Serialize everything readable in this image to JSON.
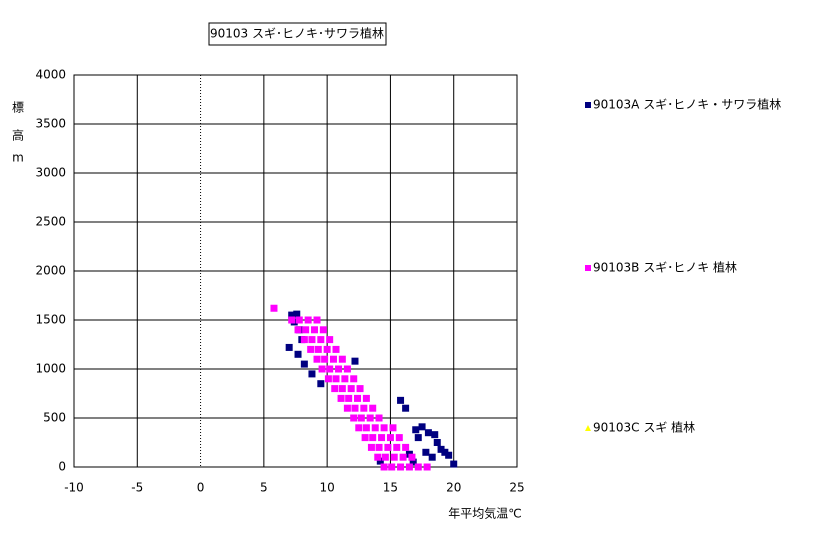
{
  "chart_data": {
    "type": "scatter",
    "title": "90103 スギ･ヒノキ･サワラ植林",
    "x_label": "年平均気温℃",
    "y_label": [
      "標",
      "高",
      "m"
    ],
    "xlim": [
      -10,
      25
    ],
    "xticks": [
      -10,
      -5,
      0,
      5,
      10,
      15,
      20,
      25
    ],
    "ylim": [
      0,
      4000
    ],
    "yticks": [
      0,
      500,
      1000,
      1500,
      2000,
      2500,
      3000,
      3500,
      4000
    ],
    "grid": true,
    "legend": "right",
    "series": [
      {
        "name": "90103A スギ･ヒノキ・サワラ植林",
        "color": "#000080",
        "marker": "square",
        "x": [
          7.2,
          7.6,
          7.4,
          7.0,
          7.8,
          8.0,
          7.7,
          8.2,
          8.8,
          9.5,
          12.2,
          15.8,
          16.2,
          17.5,
          17.0,
          17.2,
          18.0,
          18.5,
          18.7,
          19.0,
          19.3,
          19.6,
          20.0,
          18.3,
          17.8,
          16.8,
          14.2,
          16.5
        ],
        "y": [
          1550,
          1560,
          1480,
          1220,
          1400,
          1300,
          1150,
          1050,
          950,
          850,
          1080,
          680,
          600,
          410,
          380,
          300,
          350,
          330,
          250,
          180,
          150,
          120,
          30,
          100,
          150,
          50,
          60,
          130
        ]
      },
      {
        "name": "90103B スギ･ヒノキ 植林",
        "color": "#ff00ff",
        "marker": "square",
        "x": [
          5.8,
          7.2,
          7.8,
          8.5,
          9.2,
          7.7,
          8.3,
          9.0,
          9.7,
          8.2,
          8.8,
          9.5,
          10.2,
          8.7,
          9.3,
          10.0,
          10.7,
          9.2,
          9.8,
          10.5,
          11.2,
          9.6,
          10.2,
          10.9,
          11.6,
          10.1,
          10.7,
          11.4,
          12.1,
          10.6,
          11.2,
          11.9,
          12.6,
          11.1,
          11.7,
          12.4,
          13.1,
          11.6,
          12.2,
          12.9,
          13.6,
          12.1,
          12.7,
          13.4,
          14.1,
          12.5,
          13.1,
          13.8,
          14.5,
          15.2,
          13.0,
          13.6,
          14.3,
          15.0,
          15.7,
          13.5,
          14.1,
          14.8,
          15.5,
          16.2,
          14.0,
          14.6,
          15.3,
          16.0,
          16.7,
          14.5,
          15.1,
          15.8,
          16.5,
          17.2,
          17.9
        ],
        "y": [
          1620,
          1500,
          1500,
          1500,
          1500,
          1400,
          1400,
          1400,
          1400,
          1300,
          1300,
          1300,
          1300,
          1200,
          1200,
          1200,
          1200,
          1100,
          1100,
          1100,
          1100,
          1000,
          1000,
          1000,
          1000,
          900,
          900,
          900,
          900,
          800,
          800,
          800,
          800,
          700,
          700,
          700,
          700,
          600,
          600,
          600,
          600,
          500,
          500,
          500,
          500,
          400,
          400,
          400,
          400,
          400,
          300,
          300,
          300,
          300,
          300,
          200,
          200,
          200,
          200,
          200,
          100,
          100,
          100,
          100,
          100,
          0,
          0,
          0,
          0,
          0,
          0
        ]
      },
      {
        "name": "90103C スギ 植林",
        "color": "#ffff00",
        "marker": "triangle",
        "x": [],
        "y": []
      }
    ]
  }
}
